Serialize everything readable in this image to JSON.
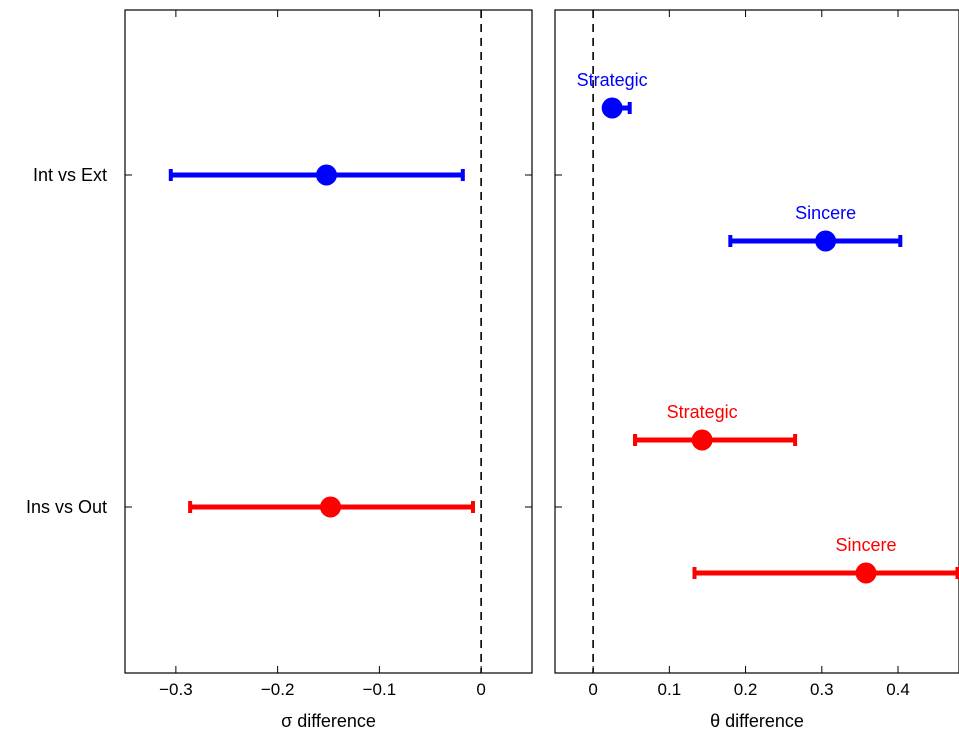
{
  "chart_data": [
    {
      "type": "scatter",
      "panel": "left",
      "title": "",
      "xlabel": "σ difference",
      "ylabel": "",
      "xlim": [
        -0.35,
        0.05
      ],
      "xticks": [
        -0.3,
        -0.2,
        -0.1,
        0
      ],
      "xtick_labels": [
        "−0.3",
        "−0.2",
        "−0.1",
        "0"
      ],
      "reference_line": {
        "x": 0,
        "style": "dashed"
      },
      "categories": [
        "Int vs Ext",
        "Ins vs Out"
      ],
      "points": [
        {
          "category": "Int vs Ext",
          "estimate": -0.152,
          "lower": -0.305,
          "upper": -0.018,
          "color": "#0000ff"
        },
        {
          "category": "Ins vs Out",
          "estimate": -0.148,
          "lower": -0.286,
          "upper": -0.008,
          "color": "#ff0000"
        }
      ]
    },
    {
      "type": "scatter",
      "panel": "right",
      "title": "",
      "xlabel": "θ difference",
      "ylabel": "",
      "xlim": [
        -0.05,
        0.48
      ],
      "xticks": [
        0,
        0.1,
        0.2,
        0.3,
        0.4
      ],
      "xtick_labels": [
        "0",
        "0.1",
        "0.2",
        "0.3",
        "0.4"
      ],
      "reference_line": {
        "x": 0,
        "style": "dashed"
      },
      "points": [
        {
          "label": "Strategic",
          "estimate": 0.025,
          "lower": 0.025,
          "upper": 0.048,
          "color": "#0000ff"
        },
        {
          "label": "Sincere",
          "estimate": 0.305,
          "lower": 0.18,
          "upper": 0.403,
          "color": "#0000ff"
        },
        {
          "label": "Strategic",
          "estimate": 0.143,
          "lower": 0.055,
          "upper": 0.265,
          "color": "#ff0000"
        },
        {
          "label": "Sincere",
          "estimate": 0.358,
          "lower": 0.133,
          "upper": 0.478,
          "color": "#ff0000"
        }
      ]
    }
  ]
}
